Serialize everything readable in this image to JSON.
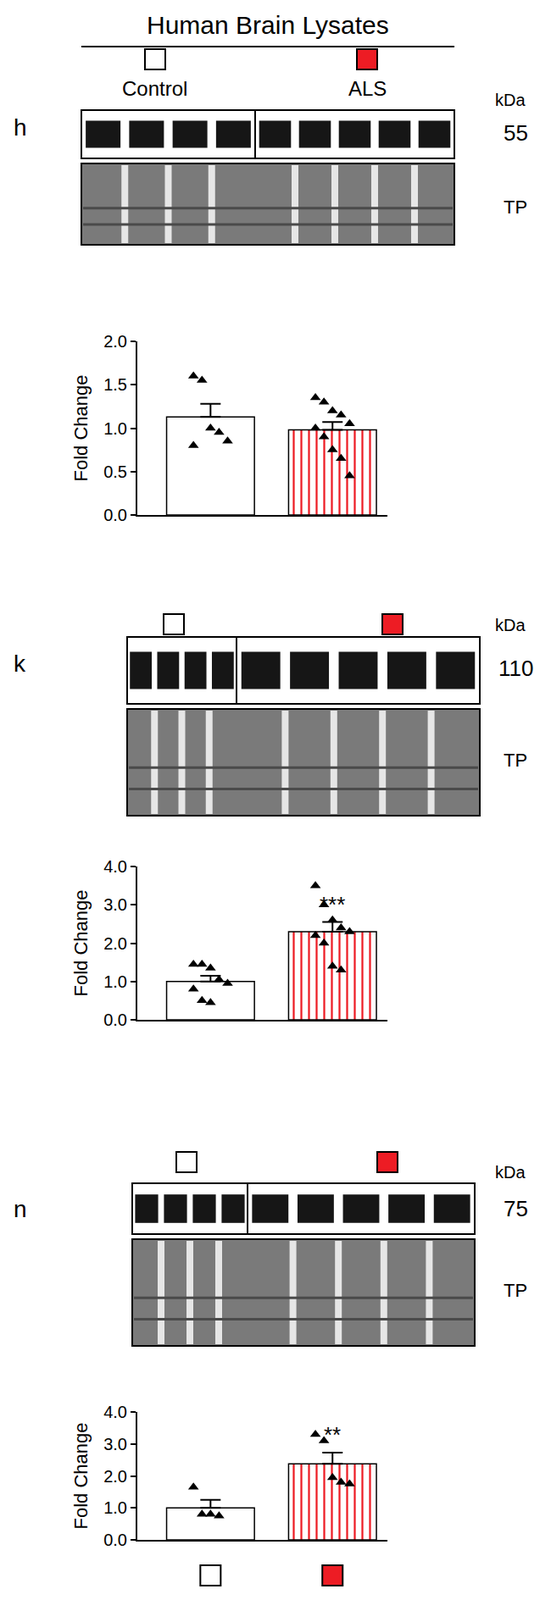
{
  "chart_data": [
    {
      "type": "bar",
      "panel": "h",
      "title": "Human Brain Lysates",
      "categories": [
        "Control",
        "ALS"
      ],
      "colors": [
        "#ffffff",
        "#ed1c24"
      ],
      "values": [
        1.13,
        0.98
      ],
      "errors": [
        0.15,
        0.09
      ],
      "points": [
        [
          1.6,
          1.55,
          1.0,
          0.95,
          0.85,
          0.8
        ],
        [
          1.35,
          1.3,
          1.2,
          1.15,
          1.05,
          1.0,
          0.9,
          0.75,
          0.65,
          0.45
        ]
      ],
      "marker": "triangle-up",
      "unit_label": "kDa",
      "band_label": "55",
      "loading_label": "TP",
      "y_label": "Fold Change",
      "ylim": [
        0,
        2
      ],
      "yticks": [
        {
          "value": 0,
          "label": "0.0"
        },
        {
          "value": 0.5,
          "label": "0.5"
        },
        {
          "value": 1,
          "label": "1.0"
        },
        {
          "value": 1.5,
          "label": "1.5"
        },
        {
          "value": 2,
          "label": "2.0"
        }
      ],
      "tick_labels": "y"
    },
    {
      "type": "bar",
      "panel": "k",
      "categories": [
        null,
        null
      ],
      "colors": [
        "#ffffff",
        "#ed1c24"
      ],
      "values": [
        1.0,
        2.3
      ],
      "errors": [
        0.15,
        0.25
      ],
      "points": [
        [
          1.45,
          1.45,
          1.35,
          1.05,
          0.95,
          0.8,
          0.5,
          0.45
        ],
        [
          3.5,
          3.0,
          2.6,
          2.4,
          2.3,
          2.2,
          2.0,
          1.4,
          1.3
        ]
      ],
      "marker": "triangle-up",
      "unit_label": "kDa",
      "band_label": "110",
      "loading_label": "TP",
      "y_label": "Fold Change",
      "ylim": [
        0,
        4
      ],
      "yticks": [
        {
          "value": 0,
          "label": "0.0"
        },
        {
          "value": 1,
          "label": "1.0"
        },
        {
          "value": 2,
          "label": "2.0"
        },
        {
          "value": 3,
          "label": "3.0"
        },
        {
          "value": 4,
          "label": "4.0"
        }
      ],
      "tick_labels": "y",
      "annotations": [
        {
          "x": 1,
          "text": "***"
        }
      ]
    },
    {
      "type": "bar",
      "panel": "n",
      "categories": [
        null,
        null
      ],
      "colors": [
        "#ffffff",
        "#ed1c24"
      ],
      "values": [
        1.0,
        2.38
      ],
      "errors": [
        0.25,
        0.35
      ],
      "points": [
        [
          1.65,
          0.8,
          0.8,
          0.75
        ],
        [
          3.3,
          3.1,
          1.95,
          1.8,
          1.75
        ]
      ],
      "marker": "triangle-up",
      "unit_label": "kDa",
      "band_label": "75",
      "loading_label": "TP",
      "y_label": "Fold Change",
      "ylim": [
        0,
        4
      ],
      "yticks": [
        {
          "value": 0,
          "label": "0.0"
        },
        {
          "value": 1,
          "label": "1.0"
        },
        {
          "value": 2,
          "label": "2.0"
        },
        {
          "value": 3,
          "label": "3.0"
        },
        {
          "value": 4,
          "label": "4.0"
        }
      ],
      "tick_labels": "y",
      "annotations": [
        {
          "x": 1,
          "text": "**"
        }
      ]
    }
  ]
}
